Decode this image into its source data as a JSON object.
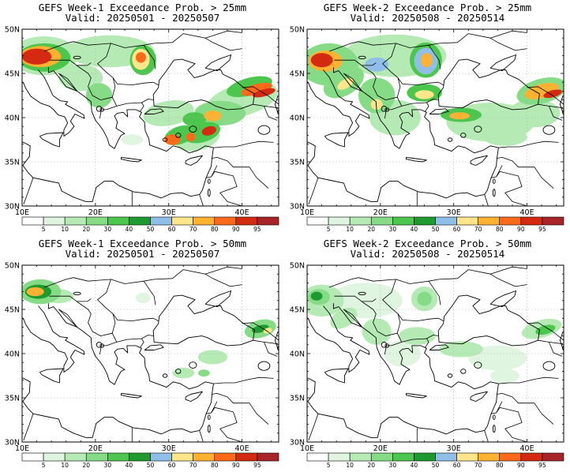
{
  "colors": {
    "levels": [
      "#ffffff",
      "#dff5df",
      "#b5eab5",
      "#86dc86",
      "#4cc64c",
      "#1f9a2f",
      "#8fbfe9",
      "#ffe68a",
      "#ffb232",
      "#ff6a1a",
      "#d42a12",
      "#a8242a"
    ],
    "coast": "#000000",
    "grid": "#b0b0b0"
  },
  "colorbar_labels": [
    "5",
    "10",
    "20",
    "30",
    "40",
    "50",
    "60",
    "70",
    "80",
    "90",
    "95"
  ],
  "axes": {
    "lat_labels": [
      "30N",
      "35N",
      "40N",
      "45N",
      "50N"
    ],
    "lon_labels": [
      "10E",
      "20E",
      "30E",
      "40E"
    ]
  },
  "panels": [
    {
      "id": "w1-25",
      "line1": "GEFS Week-1 Exceedance Prob. > 25mm",
      "line2": "Valid: 20250501 - 20250507",
      "week": 1,
      "threshold_mm": 25
    },
    {
      "id": "w2-25",
      "line1": "GEFS Week-2 Exceedance Prob. > 25mm",
      "line2": "Valid: 20250508 - 20250514",
      "week": 2,
      "threshold_mm": 25
    },
    {
      "id": "w1-50",
      "line1": "GEFS Week-1 Exceedance Prob. > 50mm",
      "line2": "Valid: 20250501 - 20250507",
      "week": 1,
      "threshold_mm": 50
    },
    {
      "id": "w2-50",
      "line1": "GEFS Week-2 Exceedance Prob. > 50mm",
      "line2": "Valid: 20250508 - 20250514",
      "week": 2,
      "threshold_mm": 50
    }
  ]
}
